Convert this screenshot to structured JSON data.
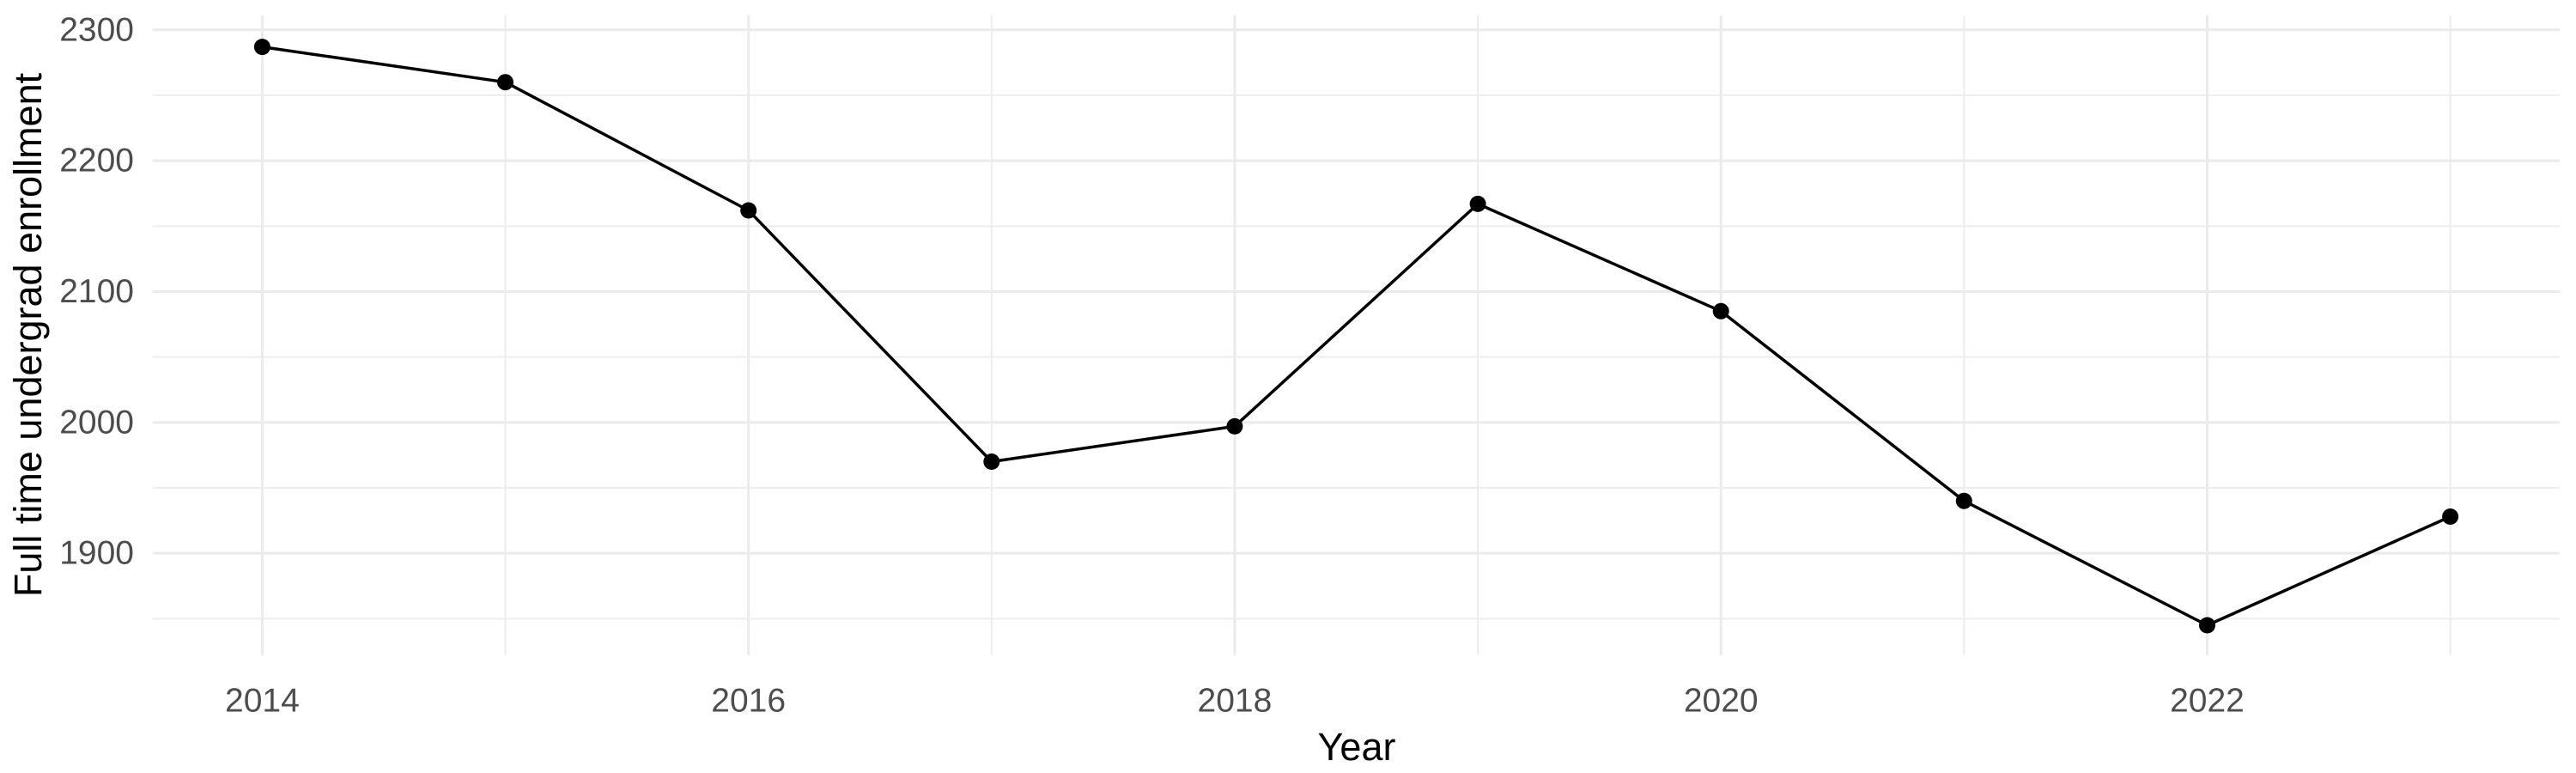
{
  "chart_data": {
    "type": "line",
    "title": "",
    "xlabel": "Year",
    "ylabel": "Full time undergrad enrollment",
    "x": [
      2014,
      2015,
      2016,
      2017,
      2018,
      2019,
      2020,
      2021,
      2022,
      2023
    ],
    "series": [
      {
        "name": "Full time undergrad enrollment",
        "values": [
          2287,
          2260,
          2162,
          1970,
          1997,
          2167,
          2085,
          1940,
          1845,
          1928
        ]
      }
    ],
    "x_major_ticks": [
      2014,
      2016,
      2018,
      2020,
      2022
    ],
    "x_minor_gridlines": [
      2015,
      2017,
      2019,
      2021,
      2023
    ],
    "y_major_ticks": [
      1900,
      2000,
      2100,
      2200,
      2300
    ],
    "y_minor_gridlines": [
      1850,
      1950,
      2050,
      2150,
      2250
    ],
    "xlim": [
      2013.55,
      2023.45
    ],
    "ylim": [
      1822,
      2311
    ],
    "grid": "major and minor gridlines, no axis lines, no tick marks",
    "legend_position": "none",
    "style": {
      "background": "#FFFFFF",
      "line_color": "#000000",
      "point_color": "#000000",
      "grid_major_color": "#EBEBEB",
      "grid_minor_color": "#EDEDED",
      "tick_label_color": "#4D4D4D",
      "axis_title_color": "#000000"
    }
  }
}
